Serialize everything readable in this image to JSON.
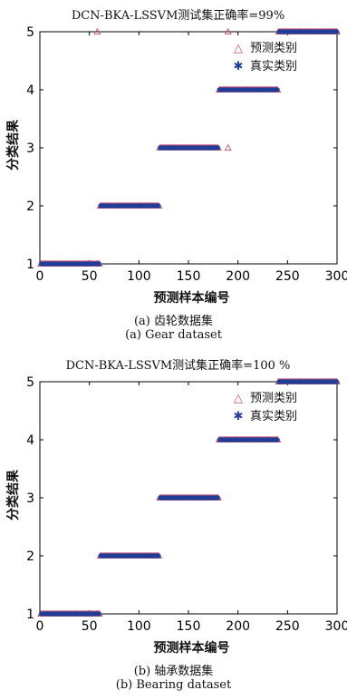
{
  "chart_data": [
    {
      "type": "scatter",
      "title": "DCN-BKA-LSSVM测试集正确率=99%",
      "xlabel": "预测样本编号",
      "ylabel": "分类结果",
      "xlim": [
        0,
        300
      ],
      "ylim": [
        1,
        5
      ],
      "xticks": [
        0,
        50,
        100,
        150,
        200,
        250,
        300
      ],
      "yticks": [
        1,
        2,
        3,
        4,
        5
      ],
      "legend_position": "top-right",
      "grid": false,
      "series": [
        {
          "name": "预测类别",
          "marker": "triangle",
          "color": "#c8506e",
          "segments": [
            {
              "x_start": 1,
              "x_end": 60,
              "value": 1
            },
            {
              "x_start": 61,
              "x_end": 120,
              "value": 2
            },
            {
              "x_start": 121,
              "x_end": 180,
              "value": 3
            },
            {
              "x_start": 181,
              "x_end": 240,
              "value": 4
            },
            {
              "x_start": 241,
              "x_end": 300,
              "value": 5
            }
          ],
          "exceptions": [
            {
              "x": 58,
              "value": 5
            },
            {
              "x": 190,
              "value": 5
            },
            {
              "x": 190,
              "value": 3
            }
          ]
        },
        {
          "name": "真实类别",
          "marker": "star",
          "color": "#1f3f99",
          "segments": [
            {
              "x_start": 1,
              "x_end": 60,
              "value": 1
            },
            {
              "x_start": 61,
              "x_end": 120,
              "value": 2
            },
            {
              "x_start": 121,
              "x_end": 180,
              "value": 3
            },
            {
              "x_start": 181,
              "x_end": 240,
              "value": 4
            },
            {
              "x_start": 241,
              "x_end": 300,
              "value": 5
            }
          ],
          "exceptions": []
        }
      ],
      "caption_cn": "(a) 齿轮数据集",
      "caption_en": "(a) Gear dataset"
    },
    {
      "type": "scatter",
      "title": "DCN-BKA-LSSVM测试集正确率=100 %",
      "xlabel": "预测样本编号",
      "ylabel": "分类结果",
      "xlim": [
        0,
        300
      ],
      "ylim": [
        1,
        5
      ],
      "xticks": [
        0,
        50,
        100,
        150,
        200,
        250,
        300
      ],
      "yticks": [
        1,
        2,
        3,
        4,
        5
      ],
      "legend_position": "top-right",
      "grid": false,
      "series": [
        {
          "name": "预测类别",
          "marker": "triangle",
          "color": "#c8506e",
          "segments": [
            {
              "x_start": 1,
              "x_end": 60,
              "value": 1
            },
            {
              "x_start": 61,
              "x_end": 120,
              "value": 2
            },
            {
              "x_start": 121,
              "x_end": 180,
              "value": 3
            },
            {
              "x_start": 181,
              "x_end": 240,
              "value": 4
            },
            {
              "x_start": 241,
              "x_end": 300,
              "value": 5
            }
          ],
          "exceptions": []
        },
        {
          "name": "真实类别",
          "marker": "star",
          "color": "#1f3f99",
          "segments": [
            {
              "x_start": 1,
              "x_end": 60,
              "value": 1
            },
            {
              "x_start": 61,
              "x_end": 120,
              "value": 2
            },
            {
              "x_start": 121,
              "x_end": 180,
              "value": 3
            },
            {
              "x_start": 181,
              "x_end": 240,
              "value": 4
            },
            {
              "x_start": 241,
              "x_end": 300,
              "value": 5
            }
          ],
          "exceptions": []
        }
      ],
      "caption_cn": "(b) 轴承数据集",
      "caption_en": "(b) Bearing dataset"
    }
  ]
}
